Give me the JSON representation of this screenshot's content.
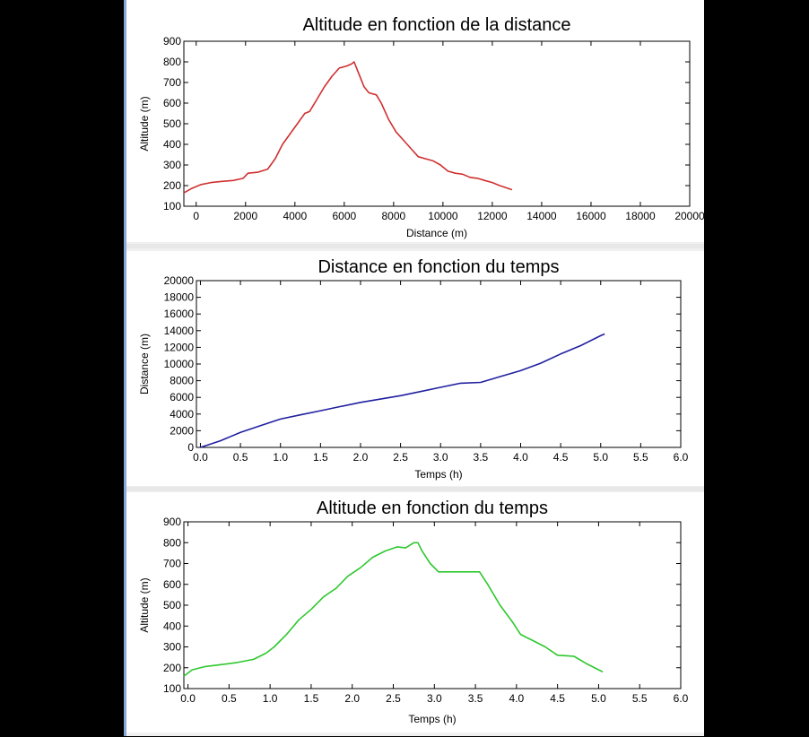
{
  "chart_data": [
    {
      "type": "line",
      "title": "Altitude en fonction de la distance",
      "xlabel": "Distance (m)",
      "ylabel": "Altitude (m)",
      "xlim": [
        -500,
        20000
      ],
      "ylim": [
        100,
        900
      ],
      "xticks": [
        0,
        2000,
        4000,
        6000,
        8000,
        10000,
        12000,
        14000,
        16000,
        18000,
        20000
      ],
      "yticks": [
        100,
        200,
        300,
        400,
        500,
        600,
        700,
        800,
        900
      ],
      "color": "#d03030",
      "series": [
        {
          "x": [
            -500,
            -200,
            200,
            600,
            1000,
            1500,
            1900,
            2100,
            2500,
            2900,
            3200,
            3500,
            3800,
            4100,
            4400,
            4600,
            4900,
            5200,
            5500,
            5800,
            6100,
            6300,
            6400,
            6600,
            6800,
            7000,
            7300,
            7500,
            7800,
            8100,
            8400,
            8700,
            9000,
            9300,
            9600,
            9900,
            10200,
            10500,
            10800,
            11100,
            11400,
            11700,
            12000,
            12300,
            12800
          ],
          "y": [
            165,
            185,
            205,
            215,
            220,
            225,
            235,
            260,
            265,
            280,
            330,
            400,
            450,
            500,
            550,
            560,
            620,
            680,
            730,
            770,
            780,
            790,
            800,
            740,
            680,
            650,
            640,
            600,
            520,
            460,
            420,
            380,
            340,
            330,
            320,
            300,
            270,
            260,
            255,
            240,
            235,
            225,
            215,
            200,
            180
          ]
        }
      ]
    },
    {
      "type": "line",
      "title": "Distance en fonction du temps",
      "xlabel": "Temps (h)",
      "ylabel": "Distance (m)",
      "xlim": [
        -0.05,
        6.0
      ],
      "ylim": [
        0,
        20000
      ],
      "xticks": [
        0.0,
        0.5,
        1.0,
        1.5,
        2.0,
        2.5,
        3.0,
        3.5,
        4.0,
        4.5,
        5.0,
        5.5,
        6.0
      ],
      "yticks": [
        0,
        2000,
        4000,
        6000,
        8000,
        10000,
        12000,
        14000,
        16000,
        18000,
        20000
      ],
      "color": "#2020a0",
      "series": [
        {
          "x": [
            0.0,
            0.25,
            0.5,
            0.75,
            1.0,
            1.25,
            1.5,
            1.75,
            2.0,
            2.25,
            2.5,
            2.75,
            3.0,
            3.25,
            3.5,
            3.75,
            4.0,
            4.25,
            4.5,
            4.75,
            5.0,
            5.05
          ],
          "y": [
            0,
            800,
            1800,
            2600,
            3400,
            3900,
            4400,
            4900,
            5400,
            5800,
            6200,
            6700,
            7200,
            7700,
            7800,
            8500,
            9200,
            10100,
            11200,
            12200,
            13400,
            13600
          ]
        }
      ]
    },
    {
      "type": "line",
      "title": "Altitude en fonction du temps",
      "xlabel": "Temps (h)",
      "ylabel": "Altitude (m)",
      "xlim": [
        -0.05,
        6.0
      ],
      "ylim": [
        100,
        900
      ],
      "xticks": [
        0.0,
        0.5,
        1.0,
        1.5,
        2.0,
        2.5,
        3.0,
        3.5,
        4.0,
        4.5,
        5.0,
        5.5,
        6.0
      ],
      "yticks": [
        100,
        200,
        300,
        400,
        500,
        600,
        700,
        800,
        900
      ],
      "color": "#2ec82e",
      "series": [
        {
          "x": [
            -0.05,
            0.05,
            0.2,
            0.4,
            0.6,
            0.8,
            0.95,
            1.05,
            1.2,
            1.35,
            1.5,
            1.65,
            1.8,
            1.95,
            2.1,
            2.25,
            2.4,
            2.55,
            2.65,
            2.75,
            2.8,
            2.85,
            2.95,
            3.05,
            3.25,
            3.45,
            3.55,
            3.65,
            3.8,
            3.95,
            4.05,
            4.2,
            4.35,
            4.5,
            4.7,
            4.85,
            5.05
          ],
          "y": [
            160,
            190,
            205,
            215,
            225,
            240,
            270,
            300,
            360,
            430,
            480,
            540,
            580,
            640,
            680,
            730,
            760,
            780,
            775,
            800,
            800,
            760,
            700,
            660,
            660,
            660,
            660,
            600,
            500,
            420,
            360,
            330,
            300,
            260,
            255,
            220,
            180
          ]
        }
      ]
    }
  ]
}
